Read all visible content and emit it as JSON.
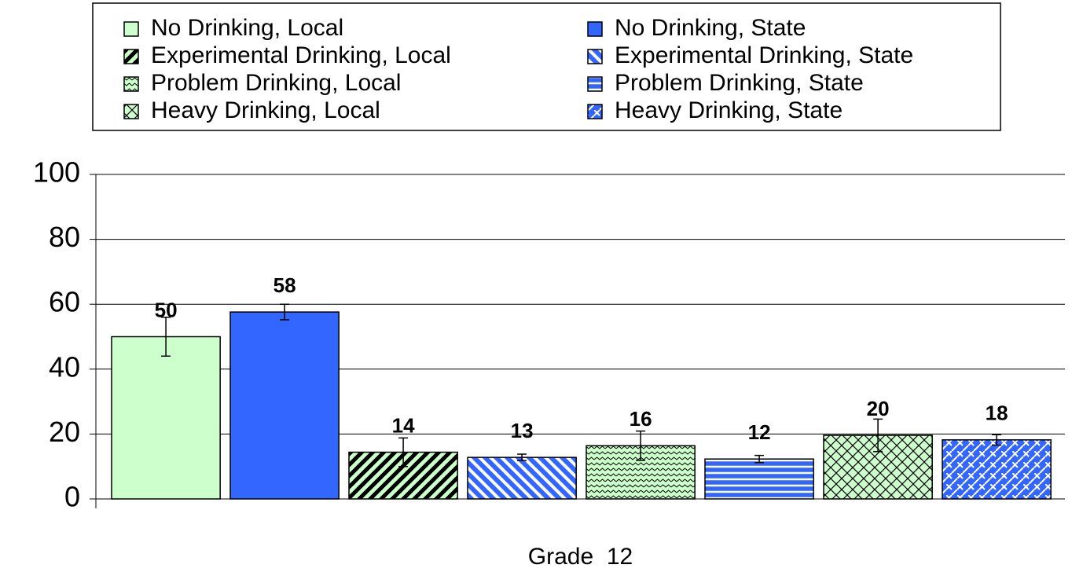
{
  "chart_data": {
    "type": "bar",
    "categories": [
      "Grade  12"
    ],
    "ylim": [
      0,
      100
    ],
    "yticks": [
      0,
      20,
      40,
      60,
      80,
      100
    ],
    "grid": true,
    "series": [
      {
        "name": "No Drinking, Local",
        "color": "#ccffcc",
        "pattern": "solid",
        "values": [
          50
        ],
        "value_labels": [
          "50"
        ],
        "errors": [
          6
        ]
      },
      {
        "name": "No Drinking, State",
        "color": "#3366ff",
        "pattern": "solid",
        "values": [
          57.6
        ],
        "value_labels": [
          "58"
        ],
        "errors": [
          2.4
        ]
      },
      {
        "name": "Experimental Drinking, Local",
        "color": "#ccffcc",
        "pattern": "diagonal",
        "values": [
          14.4
        ],
        "value_labels": [
          "14"
        ],
        "errors": [
          4.4
        ]
      },
      {
        "name": "Experimental Drinking, State",
        "color": "#3366ff",
        "pattern": "diagonal-reverse",
        "values": [
          12.8
        ],
        "value_labels": [
          "13"
        ],
        "errors": [
          1
        ]
      },
      {
        "name": "Problem Drinking, Local",
        "color": "#ccffcc",
        "pattern": "wave",
        "values": [
          16.4
        ],
        "value_labels": [
          "16"
        ],
        "errors": [
          4.5
        ]
      },
      {
        "name": "Problem Drinking, State",
        "color": "#3366ff",
        "pattern": "horizontal",
        "values": [
          12.3
        ],
        "value_labels": [
          "12"
        ],
        "errors": [
          1.1
        ]
      },
      {
        "name": "Heavy Drinking, Local",
        "color": "#ccffcc",
        "pattern": "crosshatch",
        "values": [
          19.6
        ],
        "value_labels": [
          "20"
        ],
        "errors": [
          5
        ]
      },
      {
        "name": "Heavy Drinking, State",
        "color": "#3366ff",
        "pattern": "weave",
        "values": [
          18.2
        ],
        "value_labels": [
          "18"
        ],
        "errors": [
          1.6
        ]
      }
    ]
  }
}
